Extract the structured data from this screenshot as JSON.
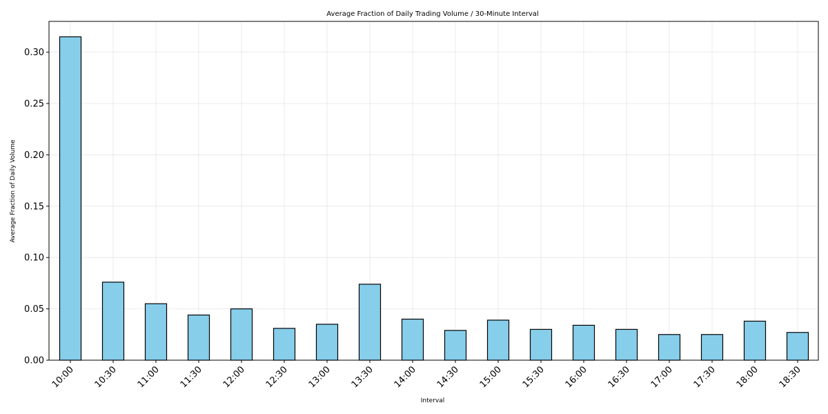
{
  "chart_data": {
    "type": "bar",
    "title": "Average Fraction of Daily Trading Volume / 30-Minute Interval",
    "xlabel": "Interval",
    "ylabel": "Average Fraction of Daily Volume",
    "categories": [
      "10:00",
      "10:30",
      "11:00",
      "11:30",
      "12:00",
      "12:30",
      "13:00",
      "13:30",
      "14:00",
      "14:30",
      "15:00",
      "15:30",
      "16:00",
      "16:30",
      "17:00",
      "17:30",
      "18:00",
      "18:30"
    ],
    "values": [
      0.315,
      0.076,
      0.055,
      0.044,
      0.05,
      0.031,
      0.035,
      0.074,
      0.04,
      0.029,
      0.039,
      0.03,
      0.034,
      0.03,
      0.025,
      0.025,
      0.038,
      0.027
    ],
    "ylim": [
      0,
      0.33
    ],
    "yticks": [
      0.0,
      0.05,
      0.1,
      0.15,
      0.2,
      0.25,
      0.3
    ],
    "ytick_labels": [
      "0.00",
      "0.05",
      "0.10",
      "0.15",
      "0.20",
      "0.25",
      "0.30"
    ],
    "grid": true,
    "bar_color": "#87ceeb",
    "edge_color": "#000000"
  }
}
